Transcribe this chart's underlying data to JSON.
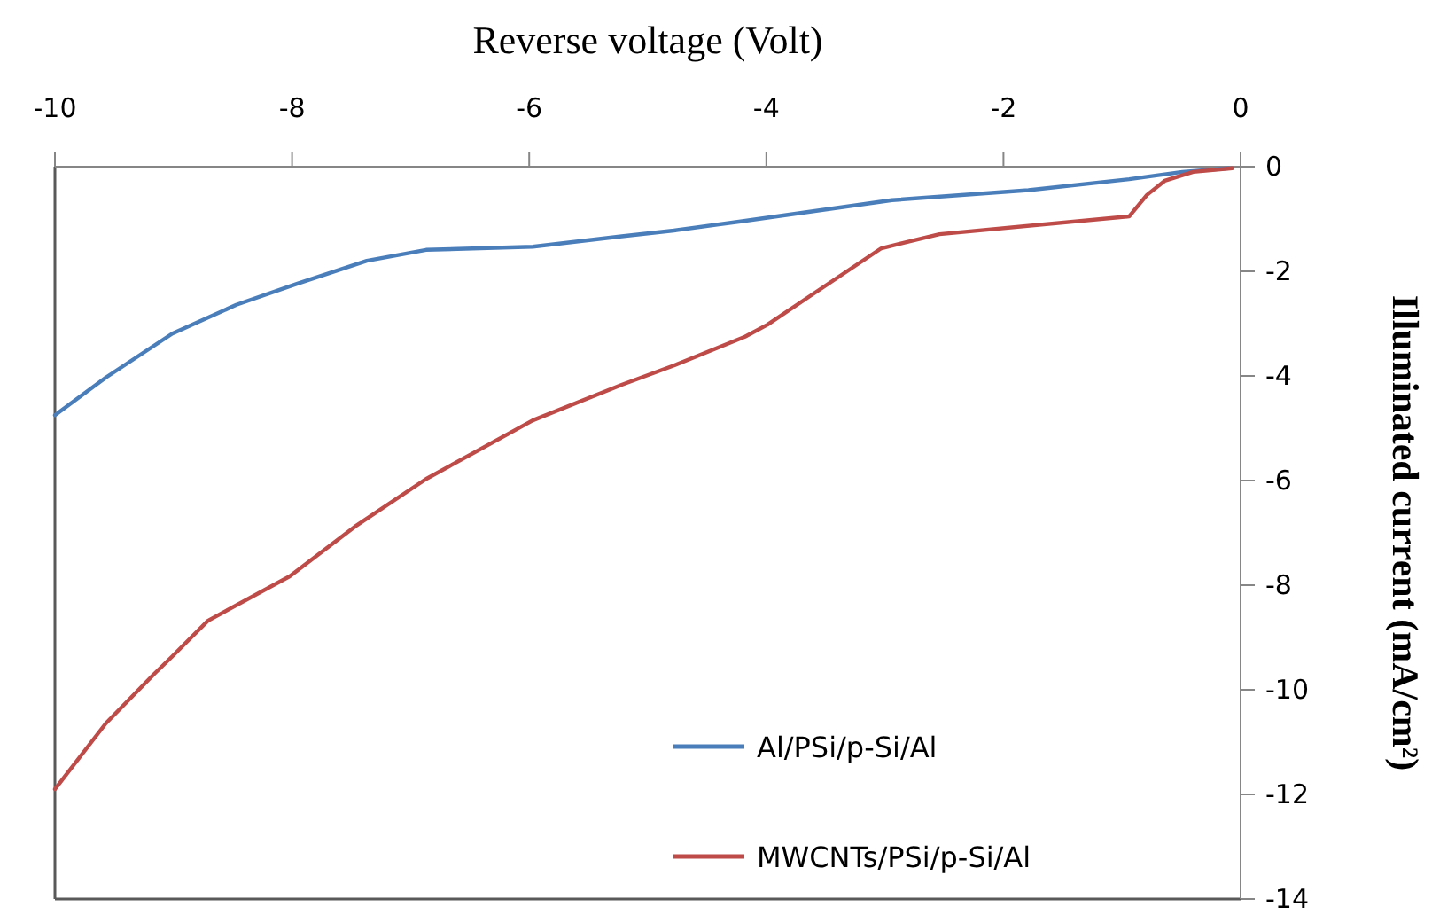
{
  "chart_data": {
    "type": "line",
    "xlabel": "Reverse voltage (Volt)",
    "ylabel": "Illuminated current (mA/cm²)",
    "xlim": [
      -10,
      0
    ],
    "xticks": [
      -10,
      -8,
      -6,
      -4,
      -2,
      0
    ],
    "ylim": [
      -14,
      0
    ],
    "yticks": [
      -14,
      -12,
      -10,
      -8,
      -6,
      -4,
      -2,
      0
    ],
    "grid": false,
    "legend": "bottom right",
    "marker": "none",
    "line_style": "solid",
    "series": [
      {
        "name": "Al/PSi/p-Si/Al",
        "color": "#4a7ebb",
        "x": [
          -10,
          -9.57,
          -9.01,
          -8.47,
          -7.96,
          -7.37,
          -6.87,
          -5.97,
          -5.22,
          -4.78,
          -4.23,
          -2.94,
          -1.79,
          -0.94,
          -0.49,
          -0.1
        ],
        "values": [
          -4.75,
          -4.03,
          -3.19,
          -2.64,
          -2.24,
          -1.8,
          -1.59,
          -1.53,
          -1.33,
          -1.22,
          -1.05,
          -0.64,
          -0.45,
          -0.24,
          -0.1,
          -0.03
        ]
      },
      {
        "name": "MWCNTs/PSi/p-Si/Al",
        "color": "#be4b48",
        "x": [
          -10,
          -9.57,
          -9.16,
          -9.01,
          -8.71,
          -8.02,
          -7.47,
          -6.87,
          -5.97,
          -5.22,
          -4.78,
          -4.18,
          -3.99,
          -3.63,
          -3.03,
          -2.54,
          -0.94,
          -0.79,
          -0.64,
          -0.4,
          -0.07
        ],
        "values": [
          -11.9,
          -10.64,
          -9.69,
          -9.36,
          -8.68,
          -7.83,
          -6.88,
          -5.97,
          -4.85,
          -4.17,
          -3.8,
          -3.25,
          -3.02,
          -2.47,
          -1.56,
          -1.29,
          -0.95,
          -0.54,
          -0.27,
          -0.1,
          -0.03
        ]
      }
    ]
  }
}
